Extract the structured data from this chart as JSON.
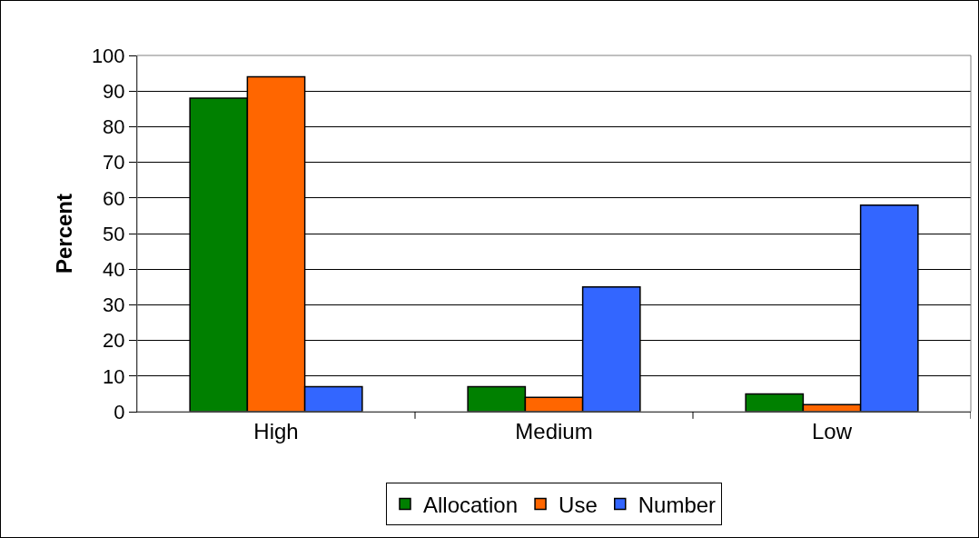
{
  "chart_data": {
    "type": "bar",
    "ylabel": "Percent",
    "categories": [
      "High",
      "Medium",
      "Low"
    ],
    "series": [
      {
        "name": "Allocation",
        "color": "#008000",
        "values": [
          88,
          7,
          5
        ]
      },
      {
        "name": "Use",
        "color": "#ff6600",
        "values": [
          94,
          4,
          2
        ]
      },
      {
        "name": "Number",
        "color": "#3366ff",
        "values": [
          7,
          35,
          58
        ]
      }
    ],
    "ylim": [
      0,
      100
    ],
    "yticks": [
      0,
      10,
      20,
      30,
      40,
      50,
      60,
      70,
      80,
      90,
      100
    ],
    "grid": "y",
    "legend": "bottom"
  }
}
